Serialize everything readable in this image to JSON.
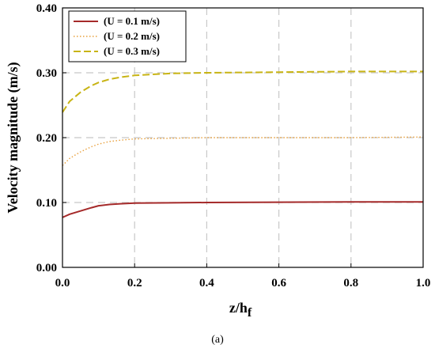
{
  "chart_data": {
    "type": "line",
    "xlabel": "z/h",
    "xlabel_subscript": "f",
    "ylabel": "Velocity magnitude (m/s)",
    "xlim": [
      0.0,
      1.0
    ],
    "ylim": [
      0.0,
      0.4
    ],
    "x_ticks": [
      "0.0",
      "0.2",
      "0.4",
      "0.6",
      "0.8",
      "1.0"
    ],
    "y_ticks": [
      "0.00",
      "0.10",
      "0.20",
      "0.30",
      "0.40"
    ],
    "grid": "dashed vertical and horizontal",
    "legend_position": "top-left",
    "caption": "(a)",
    "series": [
      {
        "name": "(U = 0.1 m/s)",
        "color": "#a52a2a",
        "style": "solid",
        "x": [
          0.0,
          0.02,
          0.05,
          0.08,
          0.1,
          0.13,
          0.16,
          0.2,
          0.3,
          0.4,
          0.6,
          0.8,
          1.0
        ],
        "y": [
          0.077,
          0.082,
          0.087,
          0.092,
          0.095,
          0.097,
          0.098,
          0.099,
          0.0995,
          0.1,
          0.1005,
          0.101,
          0.101
        ]
      },
      {
        "name": "(U = 0.2 m/s)",
        "color": "#e8a03c",
        "style": "dotted",
        "x": [
          0.0,
          0.02,
          0.05,
          0.08,
          0.1,
          0.13,
          0.16,
          0.2,
          0.3,
          0.4,
          0.6,
          0.8,
          1.0
        ],
        "y": [
          0.157,
          0.168,
          0.178,
          0.186,
          0.19,
          0.194,
          0.196,
          0.198,
          0.199,
          0.2,
          0.2,
          0.2,
          0.201
        ]
      },
      {
        "name": "(U = 0.3 m/s)",
        "color": "#c8b414",
        "style": "dashed",
        "x": [
          0.0,
          0.02,
          0.05,
          0.08,
          0.1,
          0.13,
          0.16,
          0.2,
          0.3,
          0.4,
          0.6,
          0.8,
          1.0
        ],
        "y": [
          0.239,
          0.256,
          0.27,
          0.28,
          0.285,
          0.29,
          0.293,
          0.296,
          0.299,
          0.3,
          0.301,
          0.302,
          0.302
        ]
      }
    ]
  }
}
